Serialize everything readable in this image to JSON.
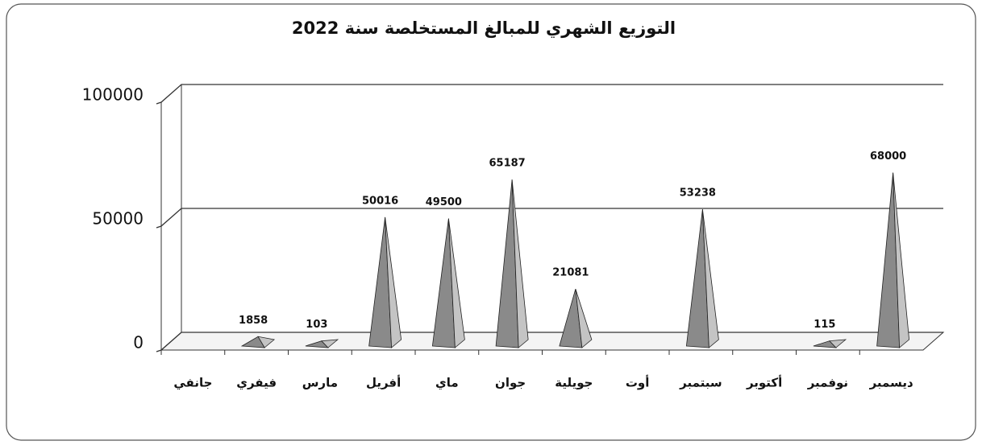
{
  "chart_data": {
    "type": "bar",
    "title": "التوزيع الشهري للمبالغ المستخلصة سنة 2022",
    "categories": [
      "جانفي",
      "فيفري",
      "مارس",
      "أفريل",
      "ماي",
      "جوان",
      "جويلية",
      "أوت",
      "سبتمبر",
      "أكتوبر",
      "نوفمبر",
      "ديسمبر"
    ],
    "values": [
      null,
      1858,
      103,
      50016,
      49500,
      65187,
      21081,
      null,
      53238,
      null,
      115,
      68000
    ],
    "color": "#8a8a8a",
    "ylim": [
      0,
      100000
    ],
    "yticks": [
      0,
      50000,
      100000
    ],
    "grid": true
  }
}
